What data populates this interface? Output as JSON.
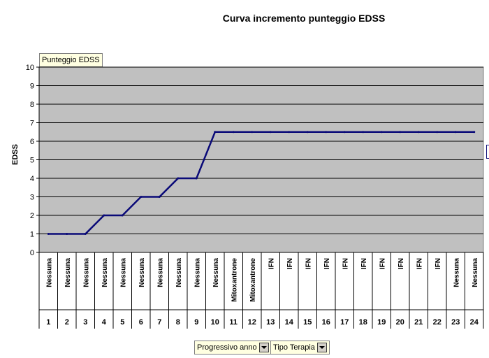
{
  "chart_data": {
    "type": "line",
    "title": "Curva incremento punteggio EDSS",
    "ylabel": "EDSS",
    "xlabel": "",
    "ylim": [
      0,
      10
    ],
    "yticks": [
      "0",
      "1",
      "2",
      "3",
      "4",
      "5",
      "6",
      "7",
      "8",
      "9",
      "10"
    ],
    "grid": true,
    "legend": "none",
    "x": [
      "1",
      "2",
      "3",
      "4",
      "5",
      "6",
      "7",
      "8",
      "9",
      "10",
      "11",
      "12",
      "13",
      "14",
      "15",
      "16",
      "17",
      "18",
      "19",
      "20",
      "21",
      "22",
      "23",
      "24"
    ],
    "x_categories": [
      "Nessuna",
      "Nessuna",
      "Nessuna",
      "Nessuna",
      "Nessuna",
      "Nessuna",
      "Nessuna",
      "Nessuna",
      "Nessuna",
      "Nessuna",
      "Mitoxantrone",
      "Mitoxantrone",
      "IFN",
      "IFN",
      "IFN",
      "IFN",
      "IFN",
      "IFN",
      "IFN",
      "IFN",
      "IFN",
      "IFN",
      "Nessuna",
      "Nessuna"
    ],
    "series": [
      {
        "values": [
          1,
          1,
          1,
          2,
          2,
          3,
          3,
          4,
          4,
          6.5,
          6.5,
          6.5,
          6.5,
          6.5,
          6.5,
          6.5,
          6.5,
          6.5,
          6.5,
          6.5,
          6.5,
          6.5,
          6.5,
          6.5
        ]
      }
    ],
    "colors": {
      "line": "#0a0a78",
      "plot_bg": "#c0c0c0",
      "grid": "#000000"
    }
  },
  "pivot": {
    "data_field": "Punteggio EDSS",
    "row_field_1": "Progressivo anno",
    "row_field_2": "Tipo Terapia"
  }
}
